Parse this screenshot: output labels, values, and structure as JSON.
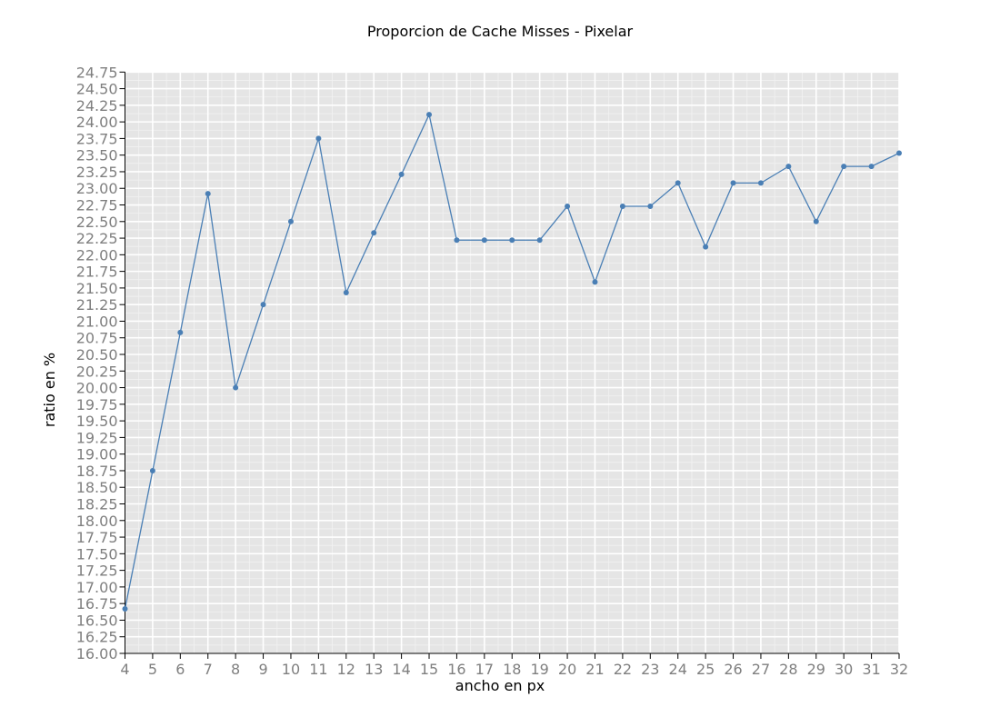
{
  "chart_data": {
    "type": "line",
    "title": "Proporcion de Cache Misses - Pixelar",
    "xlabel": "ancho en px",
    "ylabel": "ratio en %",
    "xlim": [
      4,
      32
    ],
    "ylim": [
      16.0,
      24.75
    ],
    "y_tick_step": 0.25,
    "grid": true,
    "x_ticks": [
      "4",
      "5",
      "6",
      "7",
      "8",
      "9",
      "10",
      "11",
      "12",
      "13",
      "14",
      "15",
      "16",
      "17",
      "18",
      "19",
      "20",
      "21",
      "22",
      "23",
      "24",
      "25",
      "26",
      "27",
      "28",
      "29",
      "30",
      "31",
      "32"
    ],
    "y_ticks": [
      "16.00",
      "16.25",
      "16.50",
      "16.75",
      "17.00",
      "17.25",
      "17.50",
      "17.75",
      "18.00",
      "18.25",
      "18.50",
      "18.75",
      "19.00",
      "19.25",
      "19.50",
      "19.75",
      "20.00",
      "20.25",
      "20.50",
      "20.75",
      "21.00",
      "21.25",
      "21.50",
      "21.75",
      "22.00",
      "22.25",
      "22.50",
      "22.75",
      "23.00",
      "23.25",
      "23.50",
      "23.75",
      "24.00",
      "24.25",
      "24.50",
      "24.75"
    ],
    "x": [
      4,
      5,
      6,
      7,
      8,
      9,
      10,
      11,
      12,
      13,
      14,
      15,
      16,
      17,
      18,
      19,
      20,
      21,
      22,
      23,
      24,
      25,
      26,
      27,
      28,
      29,
      30,
      31,
      32
    ],
    "series": [
      {
        "values": [
          16.67,
          18.75,
          20.83,
          22.92,
          20.0,
          21.25,
          22.5,
          23.75,
          21.43,
          22.33,
          23.21,
          24.11,
          22.22,
          22.22,
          22.22,
          22.22,
          22.73,
          21.59,
          22.73,
          22.73,
          23.08,
          22.12,
          23.08,
          23.08,
          23.33,
          22.5,
          23.33,
          23.33,
          23.53
        ],
        "color": "#4a7fb5"
      }
    ],
    "colors": {
      "background": "#e5e5e5",
      "grid_major": "#ffffff",
      "tick_text": "#7f7f7f"
    }
  }
}
